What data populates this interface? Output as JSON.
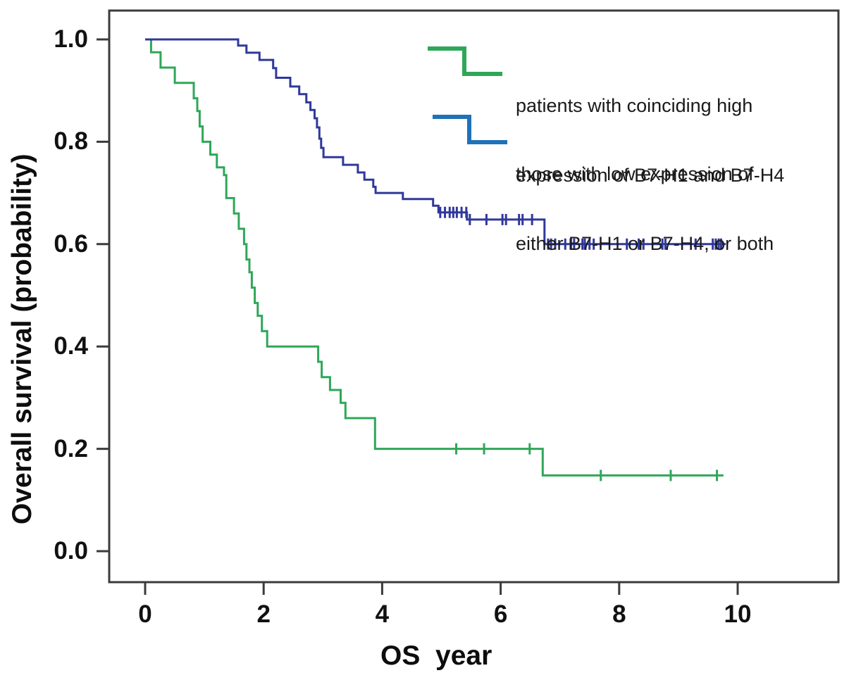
{
  "chart_data": {
    "type": "line",
    "subtype": "kaplan-meier-step-curves",
    "title": "",
    "xlabel": "OS  year",
    "ylabel": "Overall survival (probability)",
    "xticks": [
      "0",
      "2",
      "4",
      "6",
      "8",
      "10"
    ],
    "yticks": [
      "1.0",
      "0.8",
      "0.6",
      "0.4",
      "0.2",
      "0.0"
    ],
    "xlim": [
      -0.6,
      11.7
    ],
    "ylim": [
      -0.06,
      1.06
    ],
    "grid": false,
    "legend_position": "upper-right-inside",
    "axis_color": "#3b3b3b",
    "series": [
      {
        "name": "high-coexpression-group",
        "label_lines": [
          "patients with coinciding high",
          "expression of B7-H1 and B7-H4"
        ],
        "color": "#2fa758",
        "legend_color": "#2fa758",
        "steps": [
          [
            0,
            1.0
          ],
          [
            0.1,
            0.975
          ],
          [
            0.26,
            0.945
          ],
          [
            0.5,
            0.915
          ],
          [
            0.82,
            0.885
          ],
          [
            0.88,
            0.86
          ],
          [
            0.92,
            0.83
          ],
          [
            0.97,
            0.8
          ],
          [
            1.1,
            0.775
          ],
          [
            1.21,
            0.75
          ],
          [
            1.33,
            0.735
          ],
          [
            1.37,
            0.69
          ],
          [
            1.5,
            0.66
          ],
          [
            1.58,
            0.63
          ],
          [
            1.67,
            0.6
          ],
          [
            1.71,
            0.57
          ],
          [
            1.76,
            0.545
          ],
          [
            1.8,
            0.515
          ],
          [
            1.85,
            0.485
          ],
          [
            1.9,
            0.46
          ],
          [
            1.97,
            0.43
          ],
          [
            2.06,
            0.4
          ],
          [
            2.92,
            0.37
          ],
          [
            2.98,
            0.34
          ],
          [
            3.12,
            0.315
          ],
          [
            3.3,
            0.29
          ],
          [
            3.38,
            0.26
          ],
          [
            3.88,
            0.2
          ],
          [
            6.71,
            0.148
          ],
          [
            9.76,
            0.148
          ]
        ],
        "censor_marks": [
          [
            5.25,
            0.2
          ],
          [
            5.72,
            0.2
          ],
          [
            6.49,
            0.2
          ],
          [
            7.69,
            0.148
          ],
          [
            8.87,
            0.148
          ],
          [
            9.65,
            0.148
          ]
        ]
      },
      {
        "name": "low-expression-group",
        "label_lines": [
          "those with low expression of",
          "either B7-H1 or B7-H4, or both"
        ],
        "color": "#30389b",
        "legend_color": "#1f72b8",
        "steps": [
          [
            0,
            1.0
          ],
          [
            1.57,
            0.988
          ],
          [
            1.71,
            0.974
          ],
          [
            1.93,
            0.96
          ],
          [
            2.16,
            0.944
          ],
          [
            2.21,
            0.925
          ],
          [
            2.45,
            0.908
          ],
          [
            2.6,
            0.893
          ],
          [
            2.72,
            0.877
          ],
          [
            2.79,
            0.862
          ],
          [
            2.86,
            0.846
          ],
          [
            2.9,
            0.828
          ],
          [
            2.94,
            0.806
          ],
          [
            2.97,
            0.788
          ],
          [
            3.01,
            0.77
          ],
          [
            3.34,
            0.755
          ],
          [
            3.59,
            0.74
          ],
          [
            3.7,
            0.726
          ],
          [
            3.85,
            0.712
          ],
          [
            3.89,
            0.7
          ],
          [
            4.35,
            0.688
          ],
          [
            4.86,
            0.675
          ],
          [
            4.95,
            0.662
          ],
          [
            5.43,
            0.648
          ],
          [
            6.74,
            0.6
          ],
          [
            9.8,
            0.6
          ]
        ],
        "censor_marks": [
          [
            4.98,
            0.662
          ],
          [
            5.06,
            0.662
          ],
          [
            5.14,
            0.662
          ],
          [
            5.2,
            0.662
          ],
          [
            5.26,
            0.662
          ],
          [
            5.34,
            0.662
          ],
          [
            5.42,
            0.662
          ],
          [
            5.48,
            0.648
          ],
          [
            5.76,
            0.648
          ],
          [
            6.03,
            0.648
          ],
          [
            6.09,
            0.648
          ],
          [
            6.31,
            0.648
          ],
          [
            6.37,
            0.648
          ],
          [
            6.53,
            0.648
          ],
          [
            6.8,
            0.6
          ],
          [
            6.85,
            0.6
          ],
          [
            6.92,
            0.6
          ],
          [
            7.09,
            0.6
          ],
          [
            7.18,
            0.6
          ],
          [
            7.24,
            0.6
          ],
          [
            7.38,
            0.6
          ],
          [
            7.42,
            0.6
          ],
          [
            7.5,
            0.6
          ],
          [
            7.57,
            0.6
          ],
          [
            8.13,
            0.6
          ],
          [
            8.33,
            0.6
          ],
          [
            8.41,
            0.6
          ],
          [
            8.73,
            0.6
          ],
          [
            8.78,
            0.6
          ],
          [
            9.29,
            0.6
          ],
          [
            9.58,
            0.6
          ],
          [
            9.63,
            0.6
          ],
          [
            9.68,
            0.6
          ],
          [
            9.72,
            0.6
          ]
        ]
      }
    ]
  }
}
